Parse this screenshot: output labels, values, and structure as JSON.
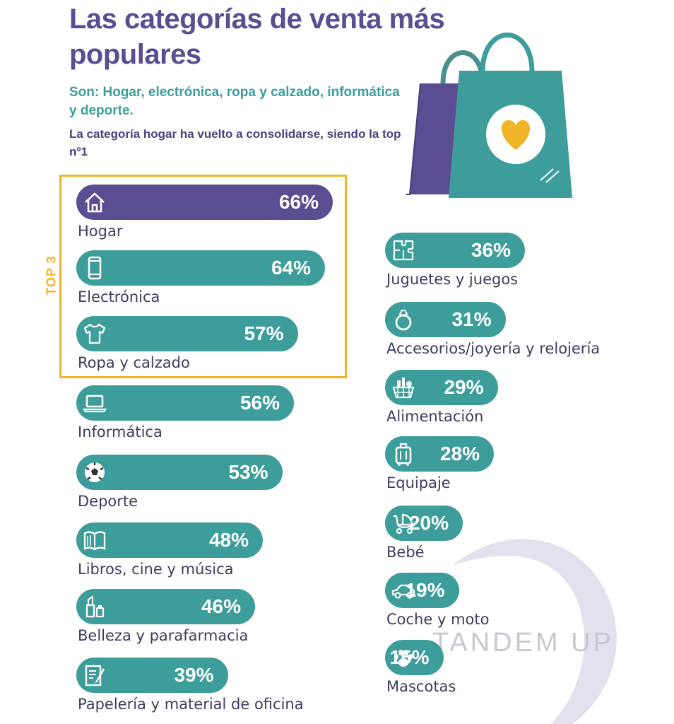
{
  "header": {
    "title": "Las categorías de venta más populares",
    "subtitle": "Son: Hogar, electrónica, ropa y calzado, informática y deporte.",
    "note": "La categoría hogar ha vuelto a consolidarse, siendo la top nº1",
    "top3_label": "TOP 3",
    "watermark": "TANDEM UP"
  },
  "colors": {
    "top_category": "#5b4d91",
    "bars": "#3d9d9a",
    "highlight": "#f0b429",
    "text": "#3d3d5c"
  },
  "chart_data": {
    "type": "bar",
    "orientation": "horizontal",
    "unit": "%",
    "categories": [
      "Hogar",
      "Electrónica",
      "Ropa y calzado",
      "Informática",
      "Deporte",
      "Libros, cine y música",
      "Belleza y parafarmacia",
      "Papelería y material de oficina",
      "Juguetes y juegos",
      "Accesorios/joyería y relojería",
      "Alimentación",
      "Equipaje",
      "Bebé",
      "Coche y moto",
      "Mascotas"
    ],
    "values": [
      66,
      64,
      57,
      56,
      53,
      48,
      46,
      39,
      36,
      31,
      29,
      28,
      20,
      19,
      15
    ],
    "labels": [
      "66%",
      "64%",
      "57%",
      "56%",
      "53%",
      "48%",
      "46%",
      "39%",
      "36%",
      "31%",
      "29%",
      "28%",
      "20%",
      "19%",
      "15%"
    ],
    "icons": [
      "house-icon",
      "smartphone-icon",
      "tshirt-icon",
      "laptop-icon",
      "soccer-ball-icon",
      "book-icon",
      "lipstick-icon",
      "document-pencil-icon",
      "puzzle-icon",
      "ring-icon",
      "grocery-basket-icon",
      "suitcase-icon",
      "stroller-icon",
      "car-icon",
      "paw-icon"
    ],
    "top3": [
      "Hogar",
      "Electrónica",
      "Ropa y calzado"
    ]
  }
}
